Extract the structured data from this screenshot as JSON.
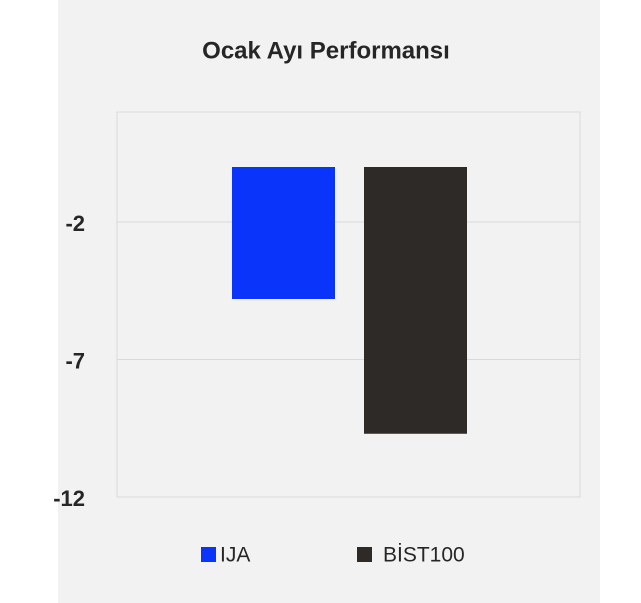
{
  "chart_data": {
    "type": "bar",
    "title": "Ocak Ayı Performansı",
    "categories": [
      null
    ],
    "series": [
      {
        "name": "IJA",
        "color": "#0a34fa",
        "values": [
          -4.8
        ]
      },
      {
        "name": "BİST100",
        "color": "#2d2a27",
        "values": [
          -9.7
        ]
      }
    ],
    "ylim": [
      -12,
      2
    ],
    "yticks": [
      -2,
      -7,
      -12
    ],
    "grid": true,
    "legend": "bottom"
  }
}
